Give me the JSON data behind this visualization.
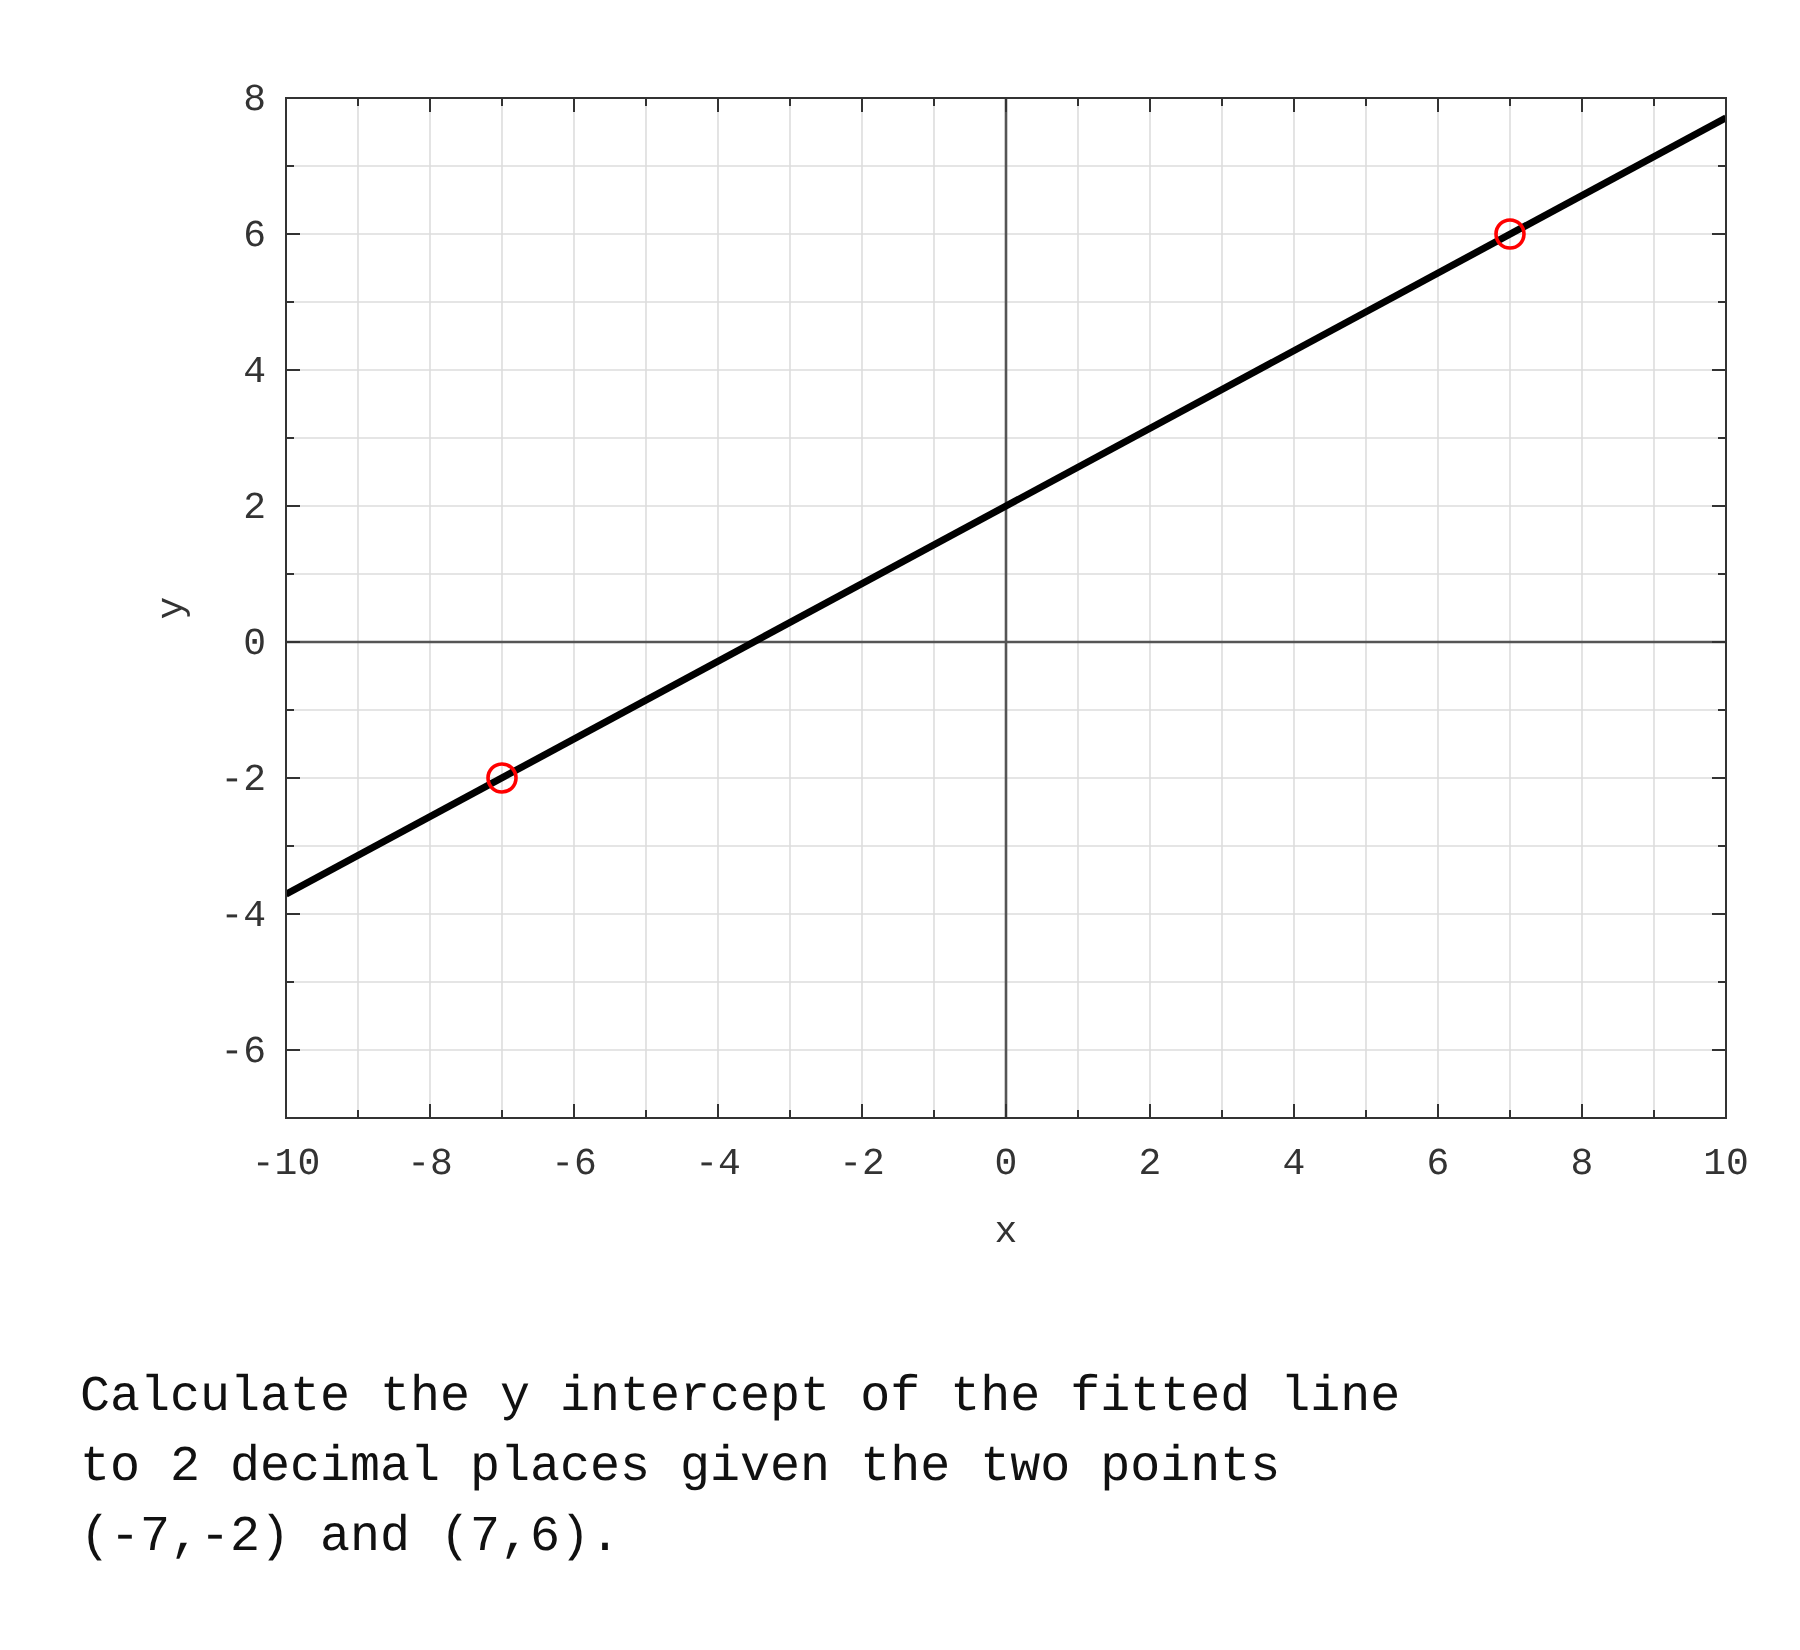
{
  "chart_data": {
    "type": "scatter",
    "xlabel": "x",
    "ylabel": "y",
    "xlim": [
      -10,
      10
    ],
    "ylim": [
      -7,
      8
    ],
    "xticks": [
      -10,
      {
        "value": -9,
        "label": null
      },
      -8,
      {
        "value": -7,
        "label": null
      },
      -6,
      {
        "value": -5,
        "label": null
      },
      -4,
      {
        "value": -3,
        "label": null
      },
      -2,
      {
        "value": -1,
        "label": null
      },
      0,
      {
        "value": 1,
        "label": null
      },
      2,
      {
        "value": 3,
        "label": null
      },
      4,
      {
        "value": 5,
        "label": null
      },
      6,
      {
        "value": 7,
        "label": null
      },
      8,
      {
        "value": 9,
        "label": null
      },
      10
    ],
    "yticks": [
      {
        "value": -7,
        "label": null
      },
      -6,
      {
        "value": -5,
        "label": null
      },
      -4,
      {
        "value": -3,
        "label": null
      },
      -2,
      {
        "value": -1,
        "label": null
      },
      0,
      {
        "value": 1,
        "label": null
      },
      2,
      {
        "value": 3,
        "label": null
      },
      4,
      {
        "value": 5,
        "label": null
      },
      6,
      {
        "value": 7,
        "label": null
      },
      8
    ],
    "grid": true,
    "series": [
      {
        "type": "line",
        "color": "#555555",
        "x": [
          0,
          0
        ],
        "values": [
          -7,
          8
        ]
      },
      {
        "type": "line",
        "color": "#555555",
        "x": [
          -10,
          10
        ],
        "values": [
          0,
          0
        ]
      },
      {
        "type": "line",
        "color": "#000000",
        "x": [
          -10,
          10
        ],
        "values": [
          -3.71,
          7.71
        ]
      },
      {
        "color": "#ff0000",
        "x": [
          -7,
          7
        ],
        "values": [
          -2,
          6
        ],
        "marker": "circle"
      }
    ],
    "annotations": [
      "Calculate the y intercept of the fitted line to 2 decimal places given the two points (-7,-2) and (7,6)."
    ]
  }
}
